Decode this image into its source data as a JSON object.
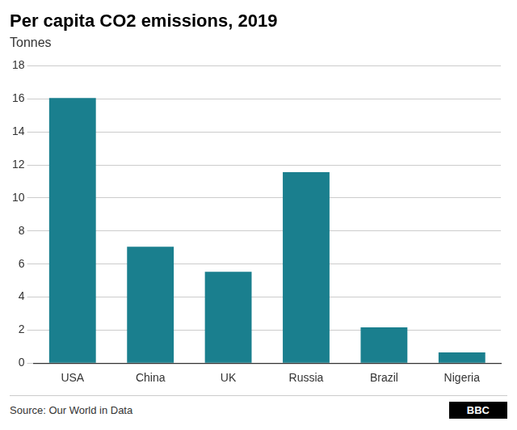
{
  "chart_data": {
    "type": "bar",
    "title": "Per capita CO2 emissions, 2019",
    "subtitle": "Tonnes",
    "categories": [
      "USA",
      "China",
      "UK",
      "Russia",
      "Brazil",
      "Nigeria"
    ],
    "values": [
      16.06,
      7.05,
      5.53,
      11.56,
      2.16,
      0.65
    ],
    "color": "#1a7f8e",
    "ylim": [
      0,
      18
    ],
    "yticks": [
      0,
      2,
      4,
      6,
      8,
      10,
      12,
      14,
      16,
      18
    ],
    "grid": true,
    "annotations": [
      "Source: Our World in Data",
      "BBC"
    ]
  }
}
